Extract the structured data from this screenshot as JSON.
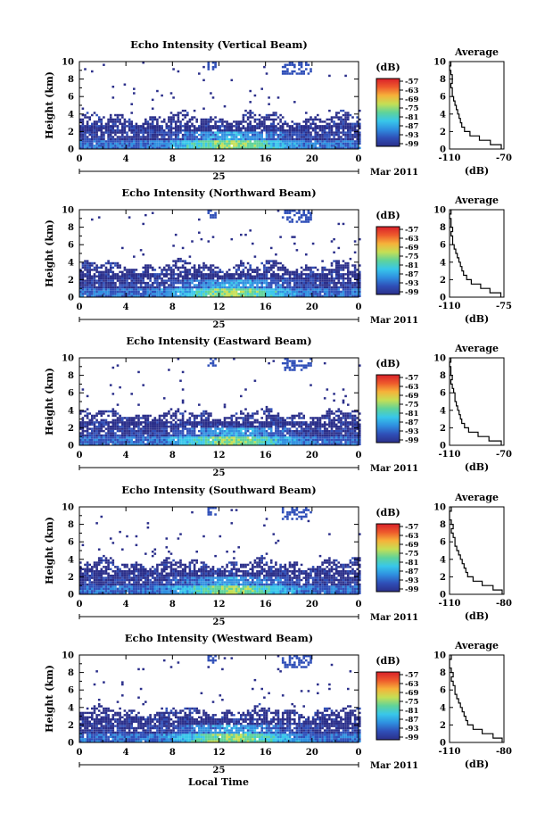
{
  "chart_data": [
    {
      "type": "heatmap",
      "title": "Echo Intensity (Vertical Beam)",
      "ylabel": "Height (km)",
      "x_ticks": [
        "0",
        "4",
        "8",
        "12",
        "16",
        "20",
        "0"
      ],
      "xlim": [
        0,
        24
      ],
      "y_ticks": [
        "0",
        "2",
        "4",
        "6",
        "8",
        "10"
      ],
      "ylim": [
        0,
        10
      ],
      "date_day": "25",
      "date_month": "Mar 2011",
      "colorbar_unit": "(dB)",
      "colorbar_ticks": [
        "-57",
        "-63",
        "-69",
        "-75",
        "-81",
        "-87",
        "-93",
        "-99"
      ],
      "avg_title": "Average",
      "avg_xlabel": "(dB)",
      "avg_x_ticks": [
        "-110",
        "-70"
      ],
      "avg_y_ticks": [
        "0",
        "2",
        "4",
        "6",
        "8",
        "10"
      ],
      "avg_xlim": [
        -110,
        -70
      ],
      "avg_height": [
        0.0,
        0.5,
        1.0,
        1.5,
        2.0,
        2.5,
        3.0,
        3.5,
        4.0,
        4.5,
        5.0,
        5.5,
        6.0,
        6.5,
        7.0,
        7.5,
        8.0,
        8.5,
        9.0,
        9.5
      ],
      "avg_profile": [
        -72,
        -80,
        -88,
        -95,
        -99,
        -101,
        -102,
        -103,
        -104,
        -105,
        -106,
        -107,
        -108,
        -108,
        -109,
        -108,
        -108,
        -109,
        -110,
        -109
      ]
    },
    {
      "type": "heatmap",
      "title": "Echo Intensity (Northward Beam)",
      "ylabel": "Height (km)",
      "x_ticks": [
        "0",
        "4",
        "8",
        "12",
        "16",
        "20",
        "0"
      ],
      "xlim": [
        0,
        24
      ],
      "y_ticks": [
        "0",
        "2",
        "4",
        "6",
        "8",
        "10"
      ],
      "ylim": [
        0,
        10
      ],
      "date_day": "25",
      "date_month": "Mar 2011",
      "colorbar_unit": "(dB)",
      "colorbar_ticks": [
        "-57",
        "-63",
        "-69",
        "-75",
        "-81",
        "-87",
        "-93",
        "-99"
      ],
      "avg_title": "Average",
      "avg_xlabel": "(dB)",
      "avg_x_ticks": [
        "-110",
        "-75"
      ],
      "avg_y_ticks": [
        "0",
        "2",
        "4",
        "6",
        "8",
        "10"
      ],
      "avg_xlim": [
        -110,
        -75
      ],
      "avg_height": [
        0.0,
        0.5,
        1.0,
        1.5,
        2.0,
        2.5,
        3.0,
        3.5,
        4.0,
        4.5,
        5.0,
        5.5,
        6.0,
        6.5,
        7.0,
        7.5,
        8.0,
        8.5,
        9.0,
        9.5
      ],
      "avg_profile": [
        -77,
        -84,
        -90,
        -96,
        -99,
        -101,
        -102,
        -103,
        -104,
        -105,
        -106,
        -107,
        -108,
        -108,
        -109,
        -108,
        -109,
        -109,
        -110,
        -109
      ]
    },
    {
      "type": "heatmap",
      "title": "Echo Intensity (Eastward Beam)",
      "ylabel": "Height (km)",
      "x_ticks": [
        "0",
        "4",
        "8",
        "12",
        "16",
        "20",
        "0"
      ],
      "xlim": [
        0,
        24
      ],
      "y_ticks": [
        "0",
        "2",
        "4",
        "6",
        "8",
        "10"
      ],
      "ylim": [
        0,
        10
      ],
      "date_day": "25",
      "date_month": "Mar 2011",
      "colorbar_unit": "(dB)",
      "colorbar_ticks": [
        "-57",
        "-63",
        "-69",
        "-75",
        "-81",
        "-87",
        "-93",
        "-99"
      ],
      "avg_title": "Average",
      "avg_xlabel": "(dB)",
      "avg_x_ticks": [
        "-110",
        "-70"
      ],
      "avg_y_ticks": [
        "0",
        "2",
        "4",
        "6",
        "8",
        "10"
      ],
      "avg_xlim": [
        -110,
        -70
      ],
      "avg_height": [
        0.0,
        0.5,
        1.0,
        1.5,
        2.0,
        2.5,
        3.0,
        3.5,
        4.0,
        4.5,
        5.0,
        5.5,
        6.0,
        6.5,
        7.0,
        7.5,
        8.0,
        8.5,
        9.0,
        9.5
      ],
      "avg_profile": [
        -72,
        -81,
        -89,
        -96,
        -99,
        -101,
        -102,
        -103,
        -104,
        -105,
        -106,
        -106,
        -107,
        -108,
        -109,
        -108,
        -109,
        -109,
        -110,
        -109
      ]
    },
    {
      "type": "heatmap",
      "title": "Echo Intensity (Southward Beam)",
      "ylabel": "Height (km)",
      "x_ticks": [
        "0",
        "4",
        "8",
        "12",
        "16",
        "20",
        "0"
      ],
      "xlim": [
        0,
        24
      ],
      "y_ticks": [
        "0",
        "2",
        "4",
        "6",
        "8",
        "10"
      ],
      "ylim": [
        0,
        10
      ],
      "date_day": "25",
      "date_month": "Mar 2011",
      "colorbar_unit": "(dB)",
      "colorbar_ticks": [
        "-57",
        "-63",
        "-69",
        "-75",
        "-81",
        "-87",
        "-93",
        "-99"
      ],
      "avg_title": "Average",
      "avg_xlabel": "(dB)",
      "avg_x_ticks": [
        "-110",
        "-80"
      ],
      "avg_y_ticks": [
        "0",
        "2",
        "4",
        "6",
        "8",
        "10"
      ],
      "avg_xlim": [
        -110,
        -80
      ],
      "avg_height": [
        0.0,
        0.5,
        1.0,
        1.5,
        2.0,
        2.5,
        3.0,
        3.5,
        4.0,
        4.5,
        5.0,
        5.5,
        6.0,
        6.5,
        7.0,
        7.5,
        8.0,
        8.5,
        9.0,
        9.5
      ],
      "avg_profile": [
        -81,
        -86,
        -92,
        -97,
        -100,
        -101,
        -102,
        -103,
        -104,
        -105,
        -106,
        -107,
        -107,
        -108,
        -109,
        -108,
        -109,
        -110,
        -110,
        -109
      ]
    },
    {
      "type": "heatmap",
      "title": "Echo Intensity (Westward Beam)",
      "ylabel": "Height (km)",
      "x_ticks": [
        "0",
        "4",
        "8",
        "12",
        "16",
        "20",
        "0"
      ],
      "xlim": [
        0,
        24
      ],
      "y_ticks": [
        "0",
        "2",
        "4",
        "6",
        "8",
        "10"
      ],
      "ylim": [
        0,
        10
      ],
      "date_day": "25",
      "date_month": "Mar 2011",
      "colorbar_unit": "(dB)",
      "colorbar_ticks": [
        "-57",
        "-63",
        "-69",
        "-75",
        "-81",
        "-87",
        "-93",
        "-99"
      ],
      "avg_title": "Average",
      "avg_xlabel": "(dB)",
      "avg_x_ticks": [
        "-110",
        "-80"
      ],
      "avg_y_ticks": [
        "0",
        "2",
        "4",
        "6",
        "8",
        "10"
      ],
      "avg_xlim": [
        -110,
        -80
      ],
      "avg_height": [
        0.0,
        0.5,
        1.0,
        1.5,
        2.0,
        2.5,
        3.0,
        3.5,
        4.0,
        4.5,
        5.0,
        5.5,
        6.0,
        6.5,
        7.0,
        7.5,
        8.0,
        8.5,
        9.0,
        9.5
      ],
      "avg_profile": [
        -81,
        -86,
        -92,
        -97,
        -100,
        -101,
        -102,
        -103,
        -104,
        -105,
        -106,
        -107,
        -107,
        -108,
        -109,
        -108,
        -109,
        -110,
        -110,
        -109
      ]
    }
  ],
  "shared_xlabel": "Local Time",
  "colorbar_colors": [
    "#2b2f8a",
    "#2f4fb8",
    "#2f8fe0",
    "#38c7ea",
    "#5fd39a",
    "#c5df55",
    "#f6b23a",
    "#ee5a2c",
    "#d9202a"
  ]
}
